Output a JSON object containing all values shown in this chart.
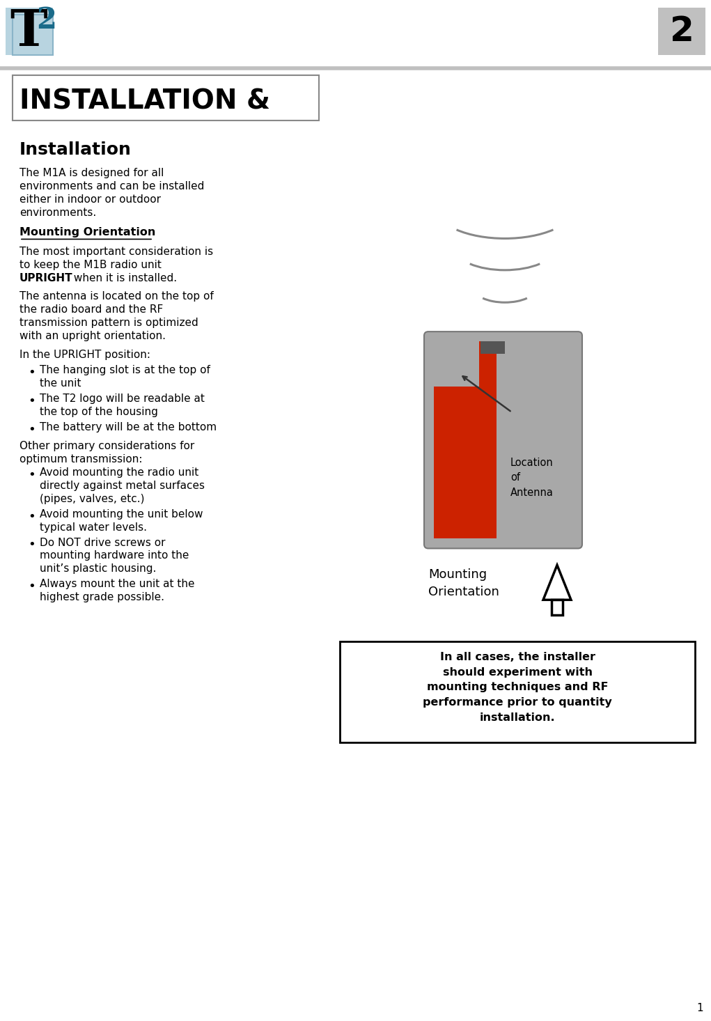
{
  "page_number": "2",
  "bg_color": "#ffffff",
  "section_title": "INSTALLATION &",
  "section_title_size": 28,
  "subsection_title": "Installation",
  "subsection_title_size": 18,
  "mounting_header": "Mounting Orientation",
  "upright_bullets": [
    [
      "The hanging slot is at the top of",
      "the unit"
    ],
    [
      "The T2 logo will be readable at",
      "the top of the housing"
    ],
    [
      "The battery will be at the bottom"
    ]
  ],
  "other_bullets": [
    [
      "Avoid mounting the radio unit",
      "directly against metal surfaces",
      "(pipes, valves, etc.)"
    ],
    [
      "Avoid mounting the unit below",
      "typical water levels."
    ],
    [
      "Do NOT drive screws or",
      "mounting hardware into the",
      "unit’s plastic housing."
    ],
    [
      "Always mount the unit at the",
      "highest grade possible."
    ]
  ],
  "box_text": "In all cases, the installer\nshould experiment with\nmounting techniques and RF\nperformance prior to quantity\ninstallation.",
  "device_body_color": "#a8a8a8",
  "device_red_color": "#cc2200",
  "logo_T_color": "#000000",
  "logo_2_color": "#1a6b8a",
  "logo_box_color": "#b8d4e0",
  "number_box_color": "#c0c0c0"
}
